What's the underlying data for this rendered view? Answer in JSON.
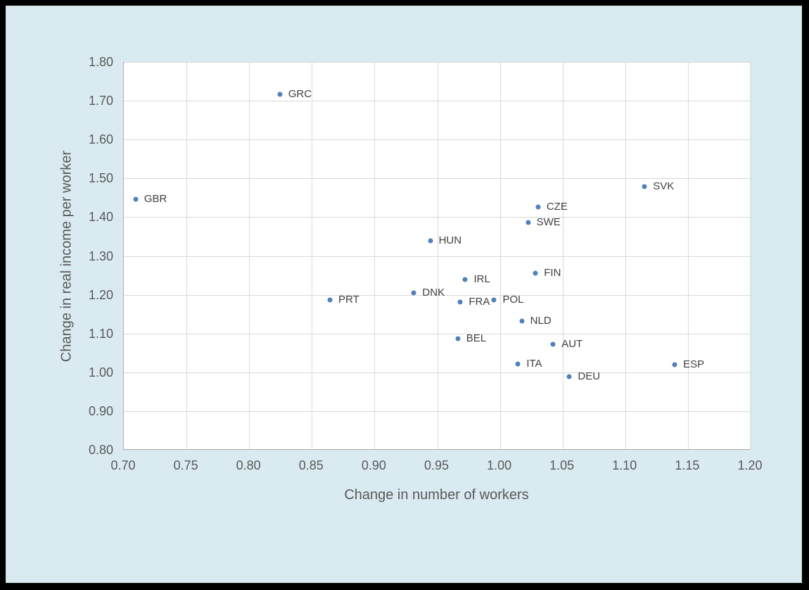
{
  "chart_data": {
    "type": "scatter",
    "title": "",
    "xlabel": "Change in number of workers",
    "ylabel": "Change in real income per worker",
    "xlim": [
      0.7,
      1.2
    ],
    "ylim": [
      0.8,
      1.8
    ],
    "xticks": [
      "0.70",
      "0.75",
      "0.80",
      "0.85",
      "0.90",
      "0.95",
      "1.00",
      "1.05",
      "1.10",
      "1.15",
      "1.20"
    ],
    "yticks": [
      "0.80",
      "0.90",
      "1.00",
      "1.10",
      "1.20",
      "1.30",
      "1.40",
      "1.50",
      "1.60",
      "1.70",
      "1.80"
    ],
    "grid": true,
    "legend": false,
    "colors": {
      "marker": "#4F81BD",
      "point_label_text": "#3F3F3F",
      "axis_text": "#595959",
      "chart_background": "#DAEAF1",
      "plot_background": "#FFFFFF",
      "gridline": "#D9D9D9",
      "frame": "#000000"
    },
    "points": [
      {
        "label": "GBR",
        "x": 0.71,
        "y": 1.447
      },
      {
        "label": "GRC",
        "x": 0.825,
        "y": 1.716
      },
      {
        "label": "PRT",
        "x": 0.865,
        "y": 1.186
      },
      {
        "label": "DNK",
        "x": 0.932,
        "y": 1.205
      },
      {
        "label": "HUN",
        "x": 0.945,
        "y": 1.339
      },
      {
        "label": "BEL",
        "x": 0.967,
        "y": 1.086
      },
      {
        "label": "FRA",
        "x": 0.969,
        "y": 1.182
      },
      {
        "label": "IRL",
        "x": 0.973,
        "y": 1.239
      },
      {
        "label": "POL",
        "x": 0.996,
        "y": 1.186
      },
      {
        "label": "ITA",
        "x": 1.015,
        "y": 1.021
      },
      {
        "label": "NLD",
        "x": 1.018,
        "y": 1.132
      },
      {
        "label": "SWE",
        "x": 1.023,
        "y": 1.386
      },
      {
        "label": "FIN",
        "x": 1.029,
        "y": 1.256
      },
      {
        "label": "CZE",
        "x": 1.031,
        "y": 1.427
      },
      {
        "label": "AUT",
        "x": 1.043,
        "y": 1.072
      },
      {
        "label": "DEU",
        "x": 1.056,
        "y": 0.989
      },
      {
        "label": "SVK",
        "x": 1.116,
        "y": 1.479
      },
      {
        "label": "ESP",
        "x": 1.14,
        "y": 1.02
      }
    ]
  }
}
